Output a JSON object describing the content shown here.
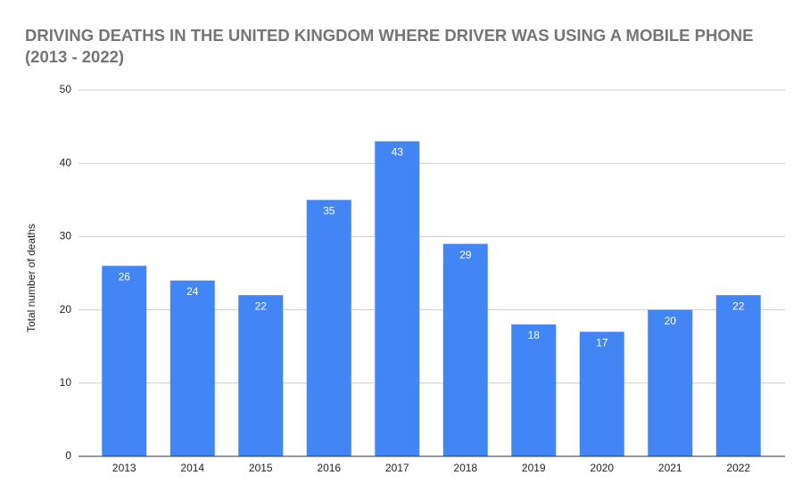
{
  "chart_data": {
    "type": "bar",
    "title": "DRIVING DEATHS IN THE UNITED KINGDOM WHERE DRIVER WAS USING A MOBILE PHONE (2013 - 2022)",
    "y_label": "Total number of deaths",
    "categories": [
      "2013",
      "2014",
      "2015",
      "2016",
      "2017",
      "2018",
      "2019",
      "2020",
      "2021",
      "2022"
    ],
    "values": [
      26,
      24,
      22,
      35,
      43,
      29,
      18,
      17,
      20,
      22
    ],
    "color": "#4285f4",
    "ylim": [
      0,
      50
    ],
    "yticks": [
      0,
      10,
      20,
      30,
      40,
      50
    ],
    "grid": true
  }
}
